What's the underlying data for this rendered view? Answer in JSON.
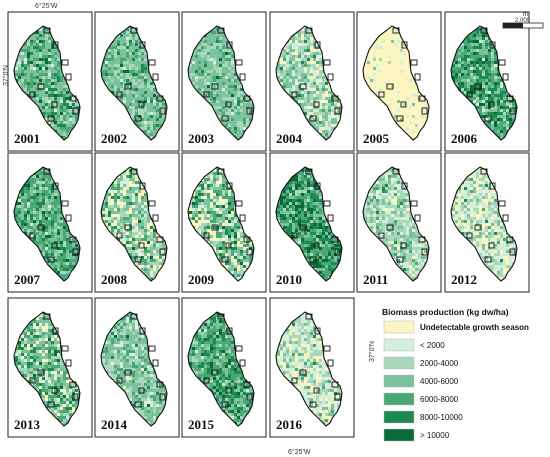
{
  "coordinates": {
    "top_lon": "6°25'W",
    "bottom_lon": "6°25'W",
    "left_lat": "37°0'N",
    "right_lat": "37°0'N"
  },
  "scale_bar": {
    "unit": "m",
    "value": "2,000"
  },
  "legend": {
    "title": "Biomass production (kg dw/ha)",
    "classes": [
      {
        "label": "Undetectable growth season",
        "color": "#fbf5c2"
      },
      {
        "label": "< 2000",
        "color": "#d4eedd"
      },
      {
        "label": "2000-4000",
        "color": "#a8d7bb"
      },
      {
        "label": "4000-6000",
        "color": "#7cc29e"
      },
      {
        "label": "6000-8000",
        "color": "#4aa877"
      },
      {
        "label": "8000-10000",
        "color": "#1e8a52"
      },
      {
        "label": "> 10000",
        "color": "#0a6b38"
      }
    ]
  },
  "panels": [
    {
      "year": "2001",
      "weights": [
        1,
        3,
        14,
        40,
        26,
        12,
        4
      ]
    },
    {
      "year": "2002",
      "weights": [
        0,
        2,
        22,
        50,
        20,
        5,
        1
      ]
    },
    {
      "year": "2003",
      "weights": [
        0,
        2,
        26,
        52,
        16,
        3,
        1
      ]
    },
    {
      "year": "2004",
      "weights": [
        14,
        18,
        30,
        28,
        8,
        2,
        0
      ]
    },
    {
      "year": "2005",
      "weights": [
        88,
        8,
        3,
        1,
        0,
        0,
        0
      ]
    },
    {
      "year": "2006",
      "weights": [
        0,
        2,
        8,
        22,
        30,
        24,
        14
      ]
    },
    {
      "year": "2007",
      "weights": [
        0,
        1,
        10,
        30,
        36,
        18,
        5
      ]
    },
    {
      "year": "2008",
      "weights": [
        22,
        12,
        20,
        26,
        14,
        5,
        1
      ]
    },
    {
      "year": "2009",
      "weights": [
        20,
        8,
        16,
        24,
        20,
        9,
        3
      ]
    },
    {
      "year": "2010",
      "weights": [
        0,
        1,
        5,
        18,
        32,
        26,
        18
      ]
    },
    {
      "year": "2011",
      "weights": [
        6,
        26,
        40,
        22,
        5,
        1,
        0
      ]
    },
    {
      "year": "2012",
      "weights": [
        24,
        34,
        26,
        12,
        3,
        1,
        0
      ]
    },
    {
      "year": "2013",
      "weights": [
        12,
        6,
        16,
        28,
        24,
        11,
        3
      ]
    },
    {
      "year": "2014",
      "weights": [
        2,
        10,
        32,
        38,
        14,
        3,
        1
      ]
    },
    {
      "year": "2015",
      "weights": [
        0,
        1,
        8,
        26,
        34,
        22,
        9
      ]
    },
    {
      "year": "2016",
      "weights": [
        20,
        40,
        26,
        10,
        3,
        1,
        0
      ]
    }
  ]
}
